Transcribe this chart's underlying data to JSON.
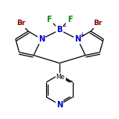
{
  "bg_color": "#ffffff",
  "bond_color": "#000000",
  "atom_colors": {
    "B": "#0000cc",
    "N": "#0000cc",
    "Br": "#8b0000",
    "F": "#008800",
    "C": "#000000"
  },
  "figsize": [
    1.52,
    1.52
  ],
  "dpi": 100
}
